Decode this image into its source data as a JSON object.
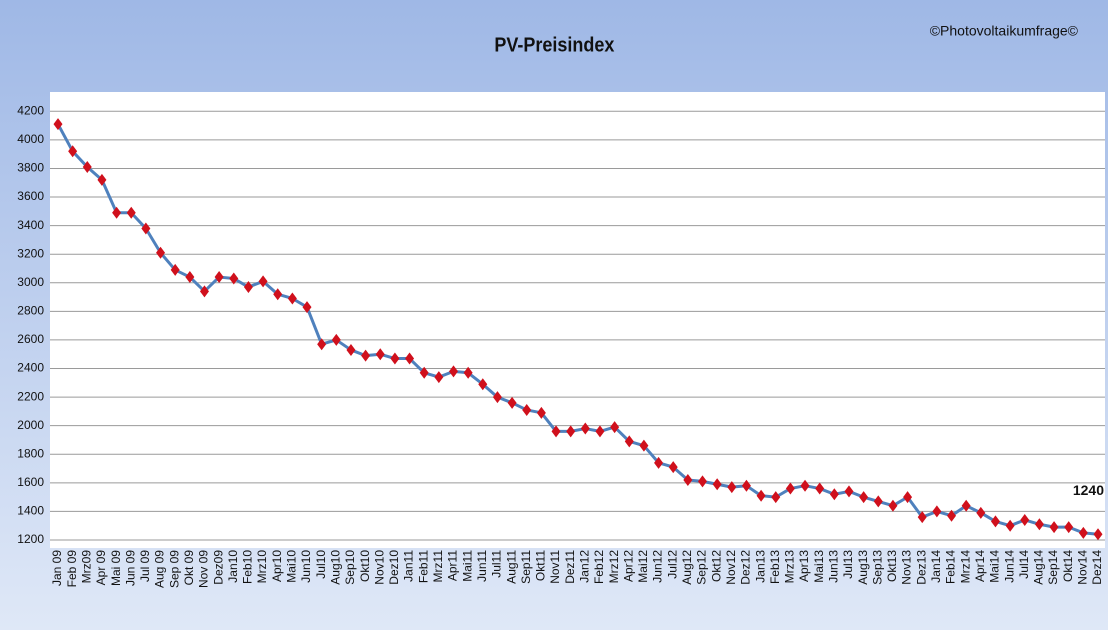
{
  "chart_data": {
    "type": "line",
    "title": "PV-Preisindex",
    "annotation": "©Photovoltaikumfrage©",
    "categories": [
      "Jan 09",
      "Feb 09",
      "Mrz09",
      "Apr 09",
      "Mai 09",
      "Jun 09",
      "Jul 09",
      "Aug 09",
      "Sep 09",
      "Okt 09",
      "Nov 09",
      "Dez09",
      "Jan10",
      "Feb10",
      "Mrz10",
      "Apr10",
      "Mai10",
      "Jun10",
      "Jul10",
      "Aug10",
      "Sep10",
      "Okt10",
      "Nov10",
      "Dez10",
      "Jan11",
      "Feb11",
      "Mrz11",
      "Apr11",
      "Mai11",
      "Jun11",
      "Jul11",
      "Aug11",
      "Sep11",
      "Okt11",
      "Nov11",
      "Dez11",
      "Jan12",
      "Feb12",
      "Mrz12",
      "Apr12",
      "Mai12",
      "Jun12",
      "Jul12",
      "Aug12",
      "Sep12",
      "Okt12",
      "Nov12",
      "Dez12",
      "Jan13",
      "Feb13",
      "Mrz13",
      "Apr13",
      "Mai13",
      "Jun13",
      "Jul13",
      "Aug13",
      "Sep13",
      "Okt13",
      "Nov13",
      "Dez13",
      "Jan14",
      "Feb14",
      "Mrz14",
      "Apr14",
      "Mai14",
      "Jun14",
      "Jul14",
      "Aug14",
      "Sep14",
      "Okt14",
      "Nov14",
      "Dez14"
    ],
    "series": [
      {
        "name": "PV-Preisindex",
        "color": "#4f81bd",
        "marker_color": "#d0101c",
        "values": [
          4110,
          3920,
          3810,
          3720,
          3490,
          3490,
          3380,
          3210,
          3090,
          3040,
          2940,
          3040,
          3030,
          2970,
          3010,
          2920,
          2890,
          2830,
          2570,
          2600,
          2530,
          2490,
          2500,
          2470,
          2470,
          2370,
          2340,
          2380,
          2370,
          2290,
          2200,
          2160,
          2110,
          2090,
          1960,
          1960,
          1980,
          1960,
          1990,
          1890,
          1860,
          1740,
          1710,
          1620,
          1610,
          1590,
          1570,
          1580,
          1510,
          1500,
          1560,
          1580,
          1560,
          1520,
          1540,
          1500,
          1470,
          1440,
          1500,
          1360,
          1400,
          1370,
          1440,
          1390,
          1330,
          1300,
          1340,
          1310,
          1290,
          1290,
          1250,
          1240
        ]
      }
    ],
    "labeled_point": 71,
    "ylim": [
      1200,
      4300
    ],
    "yticks": [
      1200,
      1400,
      1600,
      1800,
      2000,
      2200,
      2400,
      2600,
      2800,
      3000,
      3200,
      3400,
      3600,
      3800,
      4000,
      4200
    ],
    "grid": true
  }
}
